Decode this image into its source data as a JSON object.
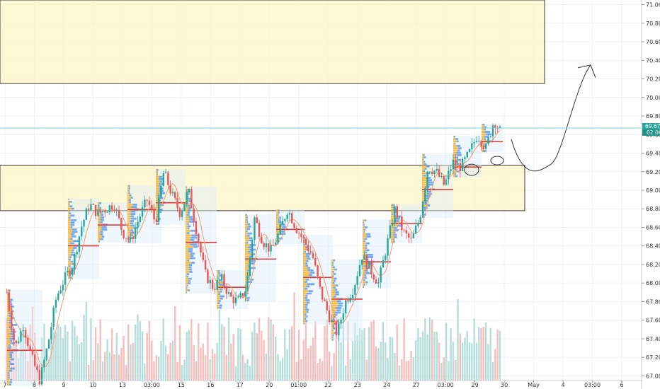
{
  "chart_data": {
    "type": "candlestick",
    "title": "",
    "xlabel": "",
    "ylabel": "",
    "ylim": [
      66.95,
      71.05
    ],
    "grid": true,
    "x_ticks": [
      "7",
      "8",
      "9",
      "10",
      "13",
      "03:00",
      "15",
      "16",
      "17",
      "20",
      "01:00",
      "22",
      "23",
      "24",
      "27",
      "03:00",
      "29",
      "30",
      "May",
      "4",
      "03:00",
      "6"
    ],
    "y_ticks": [
      "67.000",
      "67.200",
      "67.400",
      "67.600",
      "67.800",
      "68.000",
      "68.200",
      "68.400",
      "68.600",
      "68.800",
      "69.000",
      "69.200",
      "69.400",
      "69.600",
      "69.800",
      "70.000",
      "70.200",
      "70.400",
      "70.600",
      "70.800",
      "71.000"
    ],
    "last_price": "69.671",
    "countdown": "02:06",
    "zones": [
      {
        "name": "upper-supply-zone",
        "low": 70.15,
        "high": 71.05
      },
      {
        "name": "middle-support-zone",
        "low": 68.78,
        "high": 69.27
      }
    ],
    "price_path": [
      67.9,
      67.3,
      67.55,
      67.2,
      66.95,
      67.35,
      67.85,
      68.05,
      68.2,
      68.6,
      68.85,
      68.75,
      68.8,
      68.85,
      68.55,
      68.45,
      68.7,
      68.9,
      68.65,
      69.2,
      68.95,
      68.75,
      69.0,
      68.55,
      68.1,
      67.95,
      68.05,
      67.85,
      67.8,
      67.95,
      68.7,
      68.45,
      68.35,
      68.55,
      68.8,
      68.6,
      68.45,
      68.3,
      67.9,
      67.65,
      67.45,
      67.8,
      67.95,
      68.3,
      68.15,
      68.0,
      68.4,
      68.8,
      68.55,
      68.45,
      68.7,
      69.25,
      69.2,
      69.05,
      69.3,
      69.25,
      69.4,
      69.6,
      69.45,
      69.75,
      69.6
    ],
    "volume_seed": 7,
    "annotations": [
      {
        "type": "projected-path",
        "points": [
          [
            69.55,
            0
          ],
          [
            69.25,
            1
          ],
          [
            70.35,
            2
          ]
        ]
      },
      {
        "type": "ellipse",
        "value": 69.22
      },
      {
        "type": "ellipse",
        "value": 69.32
      }
    ],
    "colors": {
      "up": "#26a69a",
      "down": "#ef5350",
      "zone_fill": "#fdf6c7",
      "zone_border": "#3a3a3a",
      "last_price_line": "#7fcfd9",
      "last_price_badge": "#26a69a",
      "countdown_badge": "#1e8f85",
      "profile_up": "#f3b32d",
      "profile_down": "#2f80ed",
      "poc": "#e53935",
      "ma": "#f39c6b"
    }
  }
}
